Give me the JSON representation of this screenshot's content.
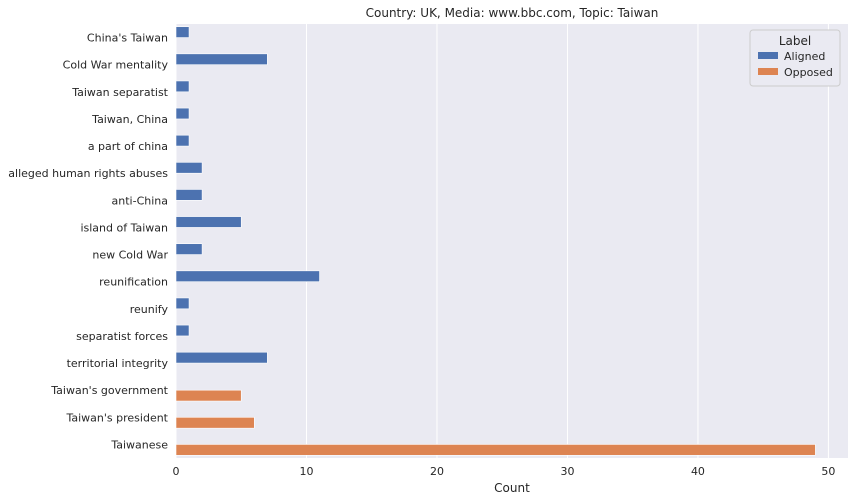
{
  "chart_data": {
    "type": "bar",
    "orientation": "horizontal",
    "title": "Country: UK, Media: www.bbc.com, Topic: Taiwan",
    "xlabel": "Count",
    "ylabel": "",
    "xlim": [
      0,
      51.5
    ],
    "xticks": [
      0,
      10,
      20,
      30,
      40,
      50
    ],
    "grid": true,
    "legend": {
      "title": "Label",
      "placement": "top-right"
    },
    "categories": [
      "China's Taiwan",
      "Cold War mentality",
      "Taiwan separatist",
      "Taiwan, China",
      "a part of china",
      "alleged human rights abuses",
      "anti-China",
      "island of Taiwan",
      "new Cold War",
      "reunification",
      "reunify",
      "separatist forces",
      "territorial integrity",
      "Taiwan's government",
      "Taiwan's president",
      "Taiwanese"
    ],
    "series": [
      {
        "name": "Aligned",
        "color": "#4c72b0",
        "values": [
          1,
          7,
          1,
          1,
          1,
          2,
          2,
          5,
          2,
          11,
          1,
          1,
          7,
          null,
          null,
          null
        ]
      },
      {
        "name": "Opposed",
        "color": "#dd8452",
        "values": [
          null,
          null,
          null,
          null,
          null,
          null,
          null,
          null,
          null,
          null,
          null,
          null,
          null,
          5,
          6,
          49
        ]
      }
    ]
  }
}
